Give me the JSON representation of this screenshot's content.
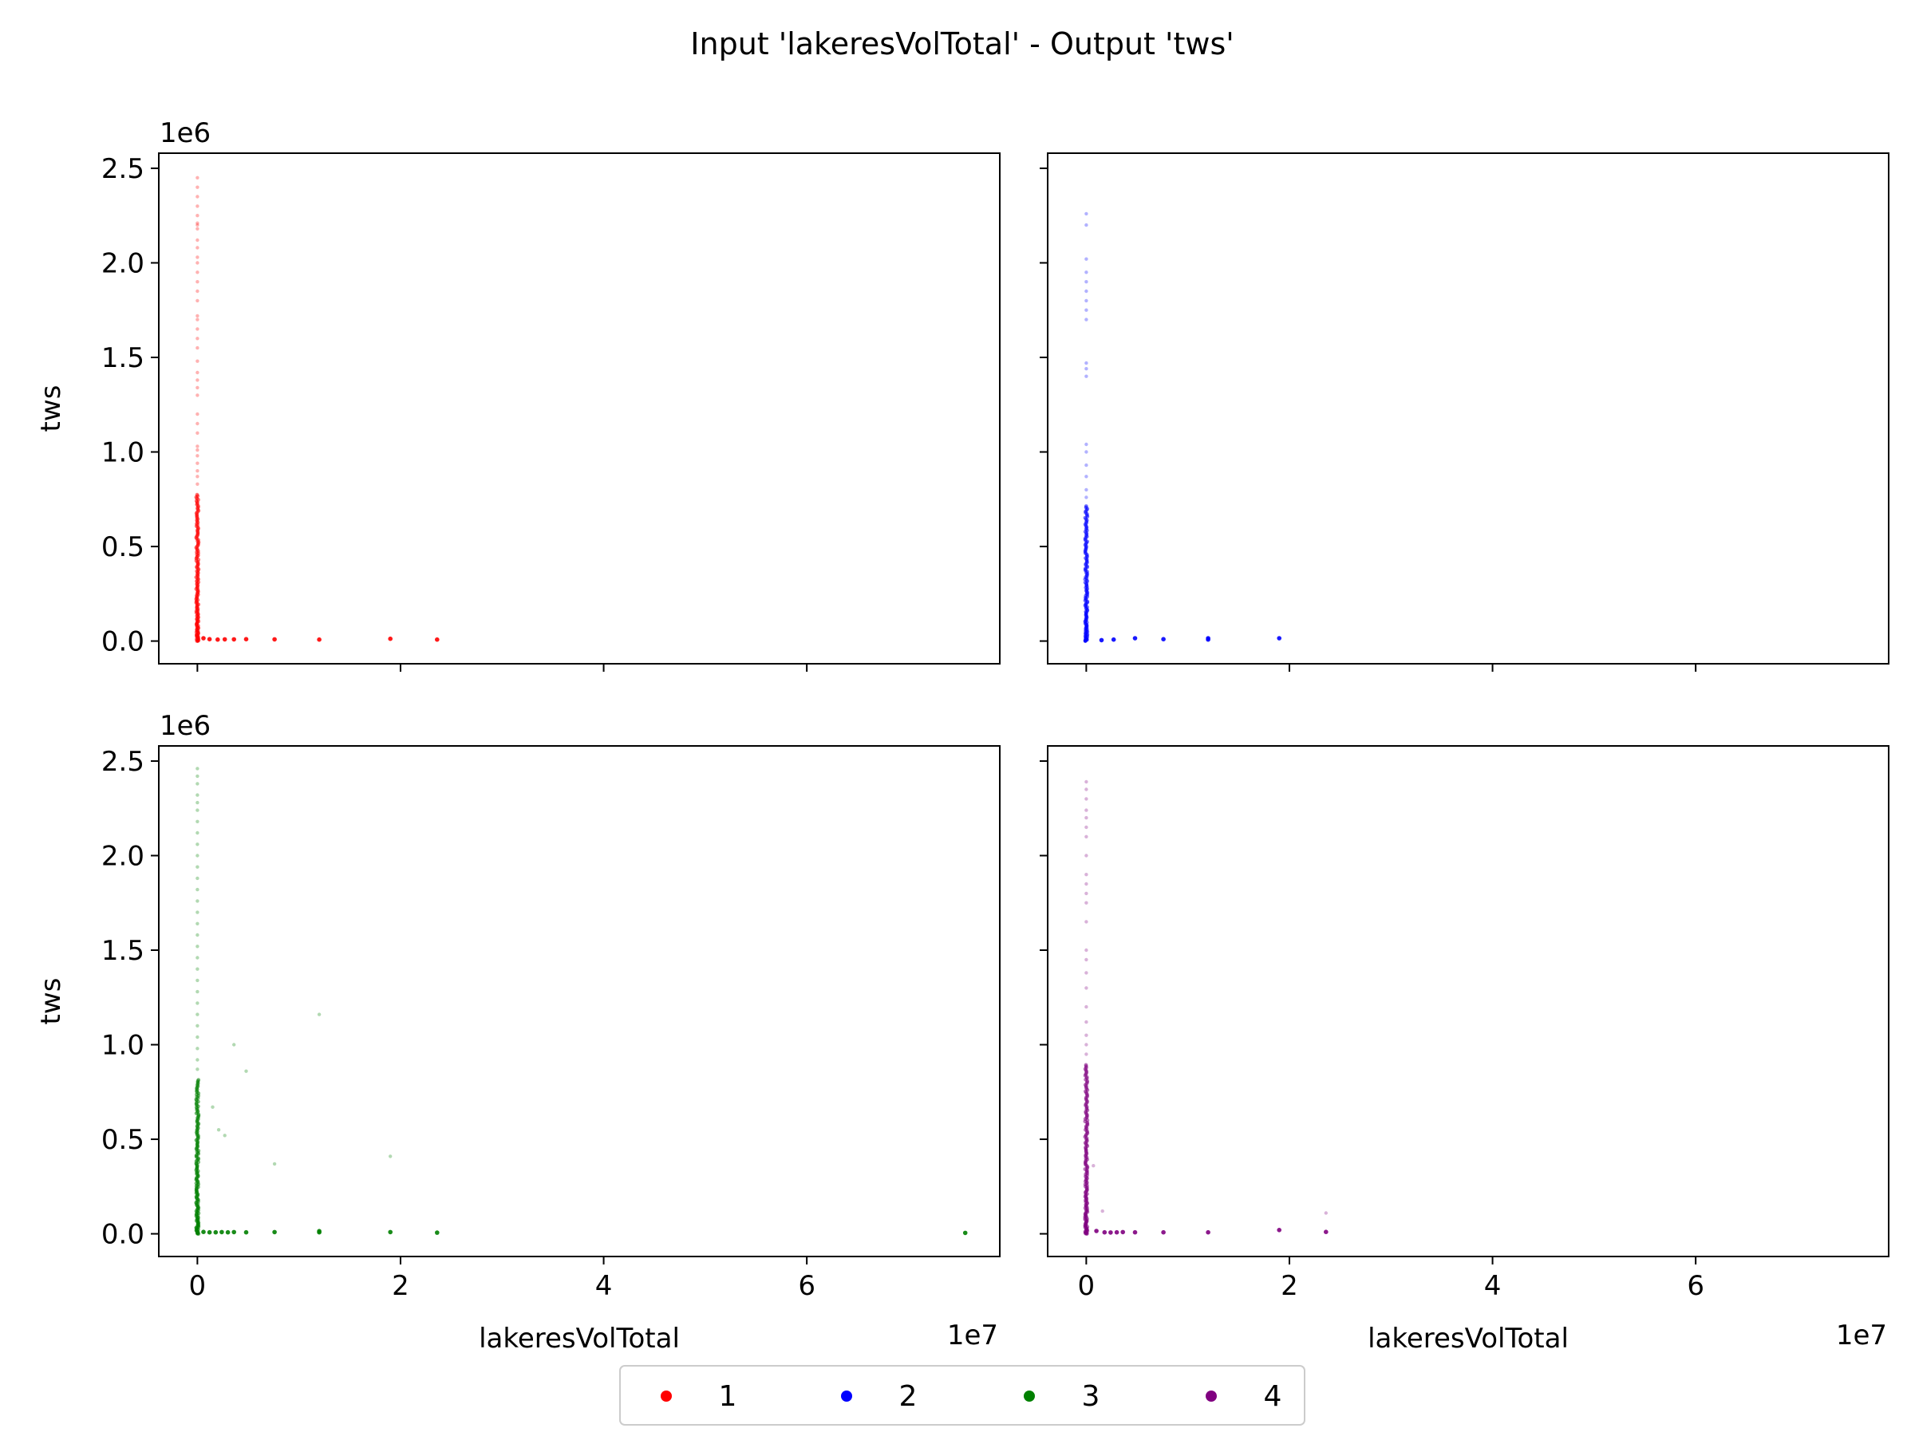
{
  "chart_data": {
    "type": "scatter",
    "title": "Input 'lakeresVolTotal' - Output 'tws'",
    "xlabel": "lakeresVolTotal",
    "ylabel": "tws",
    "x_offset_label": "1e7",
    "y_offset_label": "1e6",
    "xlim": [
      -3800000,
      79000000
    ],
    "ylim": [
      -120000,
      2580000
    ],
    "x_ticks": [
      0,
      20000000,
      40000000,
      60000000
    ],
    "x_tick_labels": [
      "0",
      "2",
      "4",
      "6"
    ],
    "y_ticks": [
      0,
      500000,
      1000000,
      1500000,
      2000000,
      2500000
    ],
    "y_tick_labels": [
      "0.0",
      "0.5",
      "1.0",
      "1.5",
      "2.0",
      "2.5"
    ],
    "grid": false,
    "legend": {
      "placement": "bottom-center",
      "entries": [
        "1",
        "2",
        "3",
        "4"
      ]
    },
    "panels": [
      {
        "name": "1",
        "color": "#ff0000",
        "dense_column": {
          "x": 0,
          "y_max": 780000,
          "count": 160
        },
        "points": [
          [
            0,
            830000
          ],
          [
            0,
            870000
          ],
          [
            0,
            900000
          ],
          [
            0,
            940000
          ],
          [
            0,
            980000
          ],
          [
            0,
            1010000
          ],
          [
            0,
            1030000
          ],
          [
            0,
            1100000
          ],
          [
            0,
            1150000
          ],
          [
            0,
            1200000
          ],
          [
            0,
            1300000
          ],
          [
            0,
            1340000
          ],
          [
            0,
            1380000
          ],
          [
            0,
            1420000
          ],
          [
            0,
            1480000
          ],
          [
            0,
            1550000
          ],
          [
            0,
            1600000
          ],
          [
            0,
            1650000
          ],
          [
            0,
            1700000
          ],
          [
            0,
            1720000
          ],
          [
            0,
            1800000
          ],
          [
            0,
            1850000
          ],
          [
            0,
            1900000
          ],
          [
            0,
            1950000
          ],
          [
            0,
            2000000
          ],
          [
            0,
            2030000
          ],
          [
            0,
            2080000
          ],
          [
            0,
            2120000
          ],
          [
            0,
            2180000
          ],
          [
            0,
            2200000
          ],
          [
            0,
            2210000
          ],
          [
            0,
            2250000
          ],
          [
            0,
            2300000
          ],
          [
            0,
            2350000
          ],
          [
            0,
            2400000
          ],
          [
            0,
            2450000
          ],
          [
            600000,
            15000
          ],
          [
            1200000,
            10000
          ],
          [
            2000000,
            8000
          ],
          [
            2700000,
            9000
          ],
          [
            3600000,
            9000
          ],
          [
            4800000,
            10000
          ],
          [
            7600000,
            9000
          ],
          [
            12000000,
            8000
          ],
          [
            19000000,
            12000
          ],
          [
            23600000,
            8000
          ]
        ]
      },
      {
        "name": "2",
        "color": "#0000ff",
        "dense_column": {
          "x": 0,
          "y_max": 720000,
          "count": 140
        },
        "points": [
          [
            0,
            760000
          ],
          [
            0,
            800000
          ],
          [
            0,
            870000
          ],
          [
            0,
            930000
          ],
          [
            0,
            1000000
          ],
          [
            0,
            1040000
          ],
          [
            0,
            1400000
          ],
          [
            0,
            1440000
          ],
          [
            0,
            1470000
          ],
          [
            0,
            1700000
          ],
          [
            0,
            1750000
          ],
          [
            0,
            1800000
          ],
          [
            0,
            1850000
          ],
          [
            0,
            1900000
          ],
          [
            0,
            1950000
          ],
          [
            0,
            2020000
          ],
          [
            0,
            2200000
          ],
          [
            0,
            2260000
          ],
          [
            1500000,
            5000
          ],
          [
            2700000,
            8000
          ],
          [
            4800000,
            15000
          ],
          [
            7600000,
            10000
          ],
          [
            12000000,
            8000
          ],
          [
            12000000,
            15000
          ],
          [
            19000000,
            15000
          ]
        ]
      },
      {
        "name": "3",
        "color": "#008000",
        "dense_column": {
          "x": 0,
          "y_max": 820000,
          "count": 170
        },
        "points": [
          [
            0,
            870000
          ],
          [
            0,
            920000
          ],
          [
            0,
            980000
          ],
          [
            0,
            1040000
          ],
          [
            0,
            1100000
          ],
          [
            0,
            1160000
          ],
          [
            0,
            1220000
          ],
          [
            0,
            1280000
          ],
          [
            0,
            1340000
          ],
          [
            0,
            1400000
          ],
          [
            0,
            1460000
          ],
          [
            0,
            1520000
          ],
          [
            0,
            1580000
          ],
          [
            0,
            1640000
          ],
          [
            0,
            1700000
          ],
          [
            0,
            1760000
          ],
          [
            0,
            1820000
          ],
          [
            0,
            1880000
          ],
          [
            0,
            1940000
          ],
          [
            0,
            2000000
          ],
          [
            0,
            2060000
          ],
          [
            0,
            2120000
          ],
          [
            0,
            2180000
          ],
          [
            0,
            2240000
          ],
          [
            0,
            2280000
          ],
          [
            0,
            2320000
          ],
          [
            0,
            2380000
          ],
          [
            0,
            2420000
          ],
          [
            0,
            2460000
          ],
          [
            1500000,
            670000
          ],
          [
            2100000,
            550000
          ],
          [
            2700000,
            520000
          ],
          [
            3600000,
            1000000
          ],
          [
            4800000,
            860000
          ],
          [
            7600000,
            370000
          ],
          [
            12000000,
            1160000
          ],
          [
            19000000,
            410000
          ],
          [
            75600000,
            5000
          ],
          [
            600000,
            10000
          ],
          [
            1200000,
            8000
          ],
          [
            1800000,
            8000
          ],
          [
            2400000,
            9000
          ],
          [
            3000000,
            8000
          ],
          [
            3600000,
            9000
          ],
          [
            4800000,
            8000
          ],
          [
            7600000,
            9000
          ],
          [
            12000000,
            8000
          ],
          [
            12000000,
            14000
          ],
          [
            19000000,
            9000
          ],
          [
            23600000,
            6000
          ]
        ]
      },
      {
        "name": "4",
        "color": "#800080",
        "dense_column": {
          "x": 0,
          "y_max": 900000,
          "count": 170
        },
        "points": [
          [
            0,
            950000
          ],
          [
            0,
            1000000
          ],
          [
            0,
            1050000
          ],
          [
            0,
            1120000
          ],
          [
            0,
            1200000
          ],
          [
            0,
            1300000
          ],
          [
            0,
            1380000
          ],
          [
            0,
            1450000
          ],
          [
            0,
            1500000
          ],
          [
            0,
            1650000
          ],
          [
            0,
            1750000
          ],
          [
            0,
            1800000
          ],
          [
            0,
            1850000
          ],
          [
            0,
            1900000
          ],
          [
            0,
            2000000
          ],
          [
            0,
            2100000
          ],
          [
            0,
            2150000
          ],
          [
            0,
            2200000
          ],
          [
            0,
            2240000
          ],
          [
            0,
            2300000
          ],
          [
            0,
            2350000
          ],
          [
            0,
            2390000
          ],
          [
            700000,
            360000
          ],
          [
            1600000,
            120000
          ],
          [
            1000000,
            15000
          ],
          [
            1800000,
            8000
          ],
          [
            2400000,
            7000
          ],
          [
            3000000,
            8000
          ],
          [
            3600000,
            9000
          ],
          [
            4800000,
            8000
          ],
          [
            7600000,
            8000
          ],
          [
            12000000,
            8000
          ],
          [
            19000000,
            20000
          ],
          [
            23600000,
            10000
          ],
          [
            23600000,
            110000
          ]
        ]
      }
    ]
  }
}
